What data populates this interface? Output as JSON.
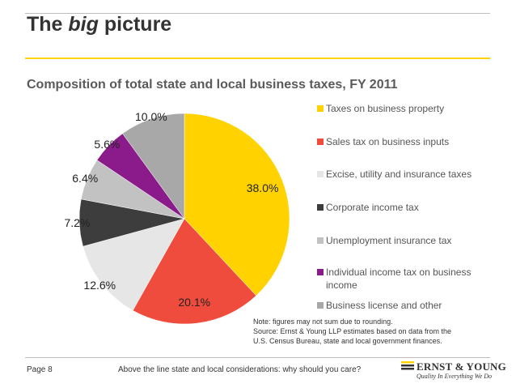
{
  "header": {
    "title_plain": "The",
    "title_emph": "big",
    "title_tail": "picture"
  },
  "chart_data": {
    "type": "pie",
    "title": "Composition of total state and local business taxes, FY 2011",
    "labels": [
      "Taxes on business property",
      "Sales tax on business inputs",
      "Excise, utility and insurance taxes",
      "Corporate income tax",
      "Unemployment insurance tax",
      "Individual income tax on business income",
      "Business license and other"
    ],
    "values": [
      38.0,
      20.1,
      12.6,
      7.2,
      6.4,
      5.6,
      10.0
    ],
    "value_labels": [
      "38.0%",
      "20.1%",
      "12.6%",
      "7.2%",
      "6.4%",
      "5.6%",
      "10.0%"
    ],
    "colors": [
      "#ffd200",
      "#f04c3e",
      "#e6e6e6",
      "#3d3d3d",
      "#c2c2c2",
      "#8b1a8b",
      "#a8a8a8"
    ],
    "start": "12 o'clock",
    "direction": "clockwise",
    "legend_position": "right"
  },
  "note": {
    "line1": "Note: figures may not sum due to rounding.",
    "line2": "Source: Ernst & Young LLP estimates based on data from the",
    "line3": "U.S. Census Bureau, state and local government finances."
  },
  "footer": {
    "page": "Page 8",
    "text": "Above the line state and local considerations: why should you care?",
    "logo_name": "ERNST & YOUNG",
    "logo_tagline": "Quality In Everything We Do"
  }
}
